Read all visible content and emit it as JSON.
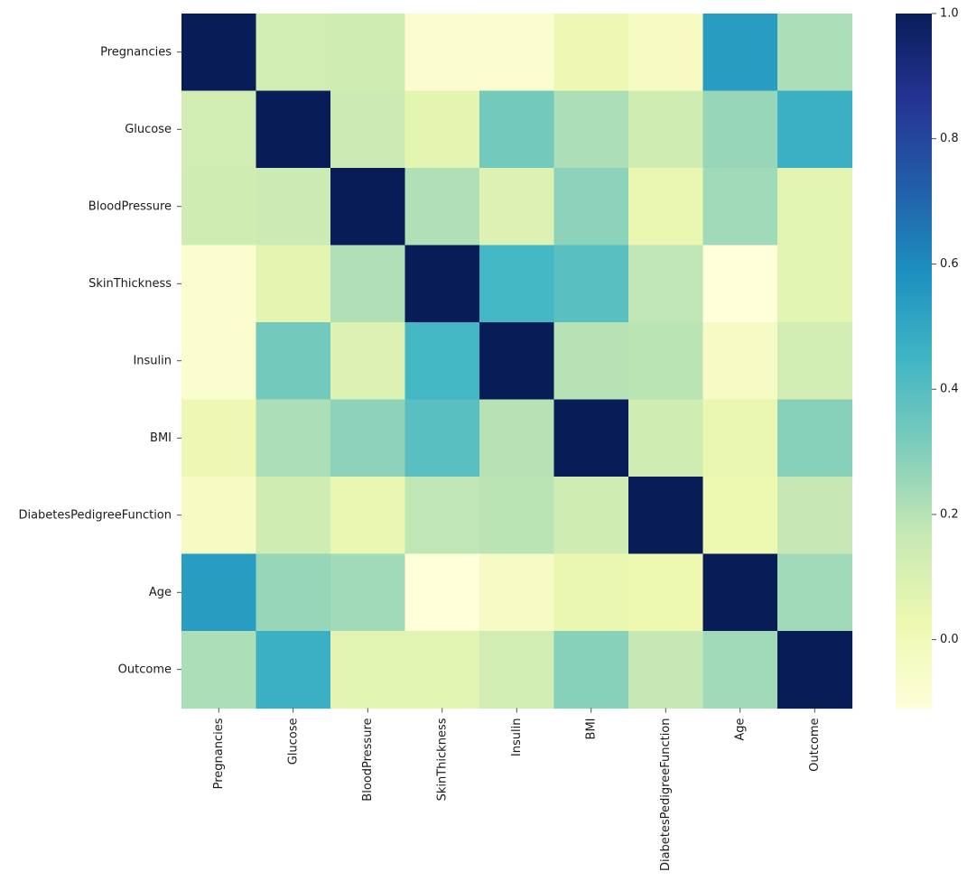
{
  "chart_data": {
    "type": "heatmap",
    "title": "",
    "xlabel": "",
    "ylabel": "",
    "labels": [
      "Pregnancies",
      "Glucose",
      "BloodPressure",
      "SkinThickness",
      "Insulin",
      "BMI",
      "DiabetesPedigreeFunction",
      "Age",
      "Outcome"
    ],
    "matrix": [
      [
        1.0,
        0.13,
        0.14,
        -0.08,
        -0.07,
        0.02,
        -0.03,
        0.54,
        0.22
      ],
      [
        0.13,
        1.0,
        0.15,
        0.06,
        0.33,
        0.22,
        0.14,
        0.26,
        0.47
      ],
      [
        0.14,
        0.15,
        1.0,
        0.21,
        0.09,
        0.28,
        0.04,
        0.24,
        0.07
      ],
      [
        -0.08,
        0.06,
        0.21,
        1.0,
        0.44,
        0.39,
        0.18,
        -0.11,
        0.07
      ],
      [
        -0.07,
        0.33,
        0.09,
        0.44,
        1.0,
        0.2,
        0.19,
        -0.04,
        0.13
      ],
      [
        0.02,
        0.22,
        0.28,
        0.39,
        0.2,
        1.0,
        0.14,
        0.04,
        0.29
      ],
      [
        -0.03,
        0.14,
        0.04,
        0.18,
        0.19,
        0.14,
        1.0,
        0.03,
        0.17
      ],
      [
        0.54,
        0.26,
        0.24,
        -0.11,
        -0.04,
        0.04,
        0.03,
        1.0,
        0.24
      ],
      [
        0.22,
        0.47,
        0.07,
        0.07,
        0.13,
        0.29,
        0.17,
        0.24,
        1.0
      ]
    ],
    "colorbar": {
      "colormap": "YlGnBu",
      "vmin": -0.11,
      "vmax": 1.0,
      "ticks": [
        1.0,
        0.8,
        0.6,
        0.4,
        0.2,
        0.0
      ],
      "tick_labels": [
        "1.0",
        "0.8",
        "0.6",
        "0.4",
        "0.2",
        "0.0"
      ]
    },
    "grid": false,
    "legend": "colorbar-right"
  }
}
